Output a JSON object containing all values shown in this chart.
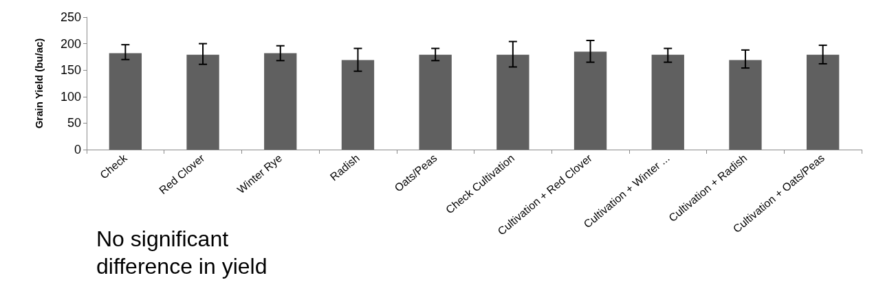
{
  "chart_data": {
    "type": "bar",
    "ylabel": "Grain Yield (bu/ac)",
    "categories": [
      "Check",
      "Red Clover",
      "Winter Rye",
      "Radish",
      "Oats/Peas",
      "Check Cultivation",
      "Cultivation + Red Clover",
      "Cultivation + Winter ...",
      "Cultivation + Radish",
      "Cultivation + Oats/Peas"
    ],
    "values": [
      182,
      179,
      182,
      169,
      179,
      179,
      185,
      179,
      169,
      179
    ],
    "errors": [
      [
        170,
        198
      ],
      [
        161,
        200
      ],
      [
        168,
        196
      ],
      [
        148,
        191
      ],
      [
        168,
        191
      ],
      [
        156,
        204
      ],
      [
        165,
        206
      ],
      [
        165,
        191
      ],
      [
        154,
        188
      ],
      [
        162,
        197
      ]
    ],
    "color": "#606060",
    "ylim": [
      0,
      250
    ],
    "yticks": [
      0,
      50,
      100,
      150,
      200,
      250
    ],
    "grid": false,
    "annotations": [
      "No significant\ndifference in yield"
    ]
  }
}
